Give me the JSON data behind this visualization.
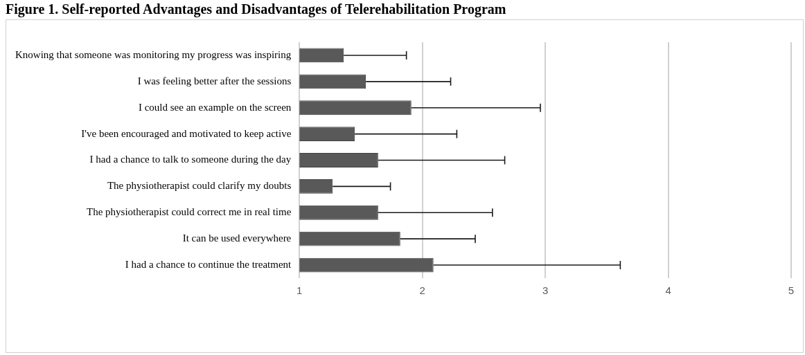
{
  "chart_data": {
    "type": "bar",
    "orientation": "horizontal",
    "title": "Figure 1. Self-reported Advantages and Disadvantages of Telerehabilitation Program",
    "categories": [
      "Knowing that someone was monitoring my progress was inspiring",
      "I was feeling better after the sessions",
      "I could see an example on the screen",
      "I've been encouraged and motivated to keep active",
      "I had a chance to talk to someone during the day",
      "The physiotherapist could clarify my doubts",
      "The physiotherapist could correct me in real time",
      "It can be used everywhere",
      "I had a chance to continue the treatment"
    ],
    "values": [
      1.36,
      1.54,
      1.91,
      1.45,
      1.64,
      1.27,
      1.64,
      1.82,
      2.09
    ],
    "errors": [
      [
        1.36,
        1.87
      ],
      [
        1.54,
        2.23
      ],
      [
        1.91,
        2.96
      ],
      [
        1.45,
        2.28
      ],
      [
        1.64,
        2.67
      ],
      [
        1.27,
        1.74
      ],
      [
        1.64,
        2.57
      ],
      [
        1.82,
        2.43
      ],
      [
        2.09,
        3.61
      ]
    ],
    "color": "#595959",
    "xlim": [
      1,
      5
    ],
    "xticks": [
      1,
      2,
      3,
      4,
      5
    ],
    "grid": "x",
    "legend": false
  }
}
